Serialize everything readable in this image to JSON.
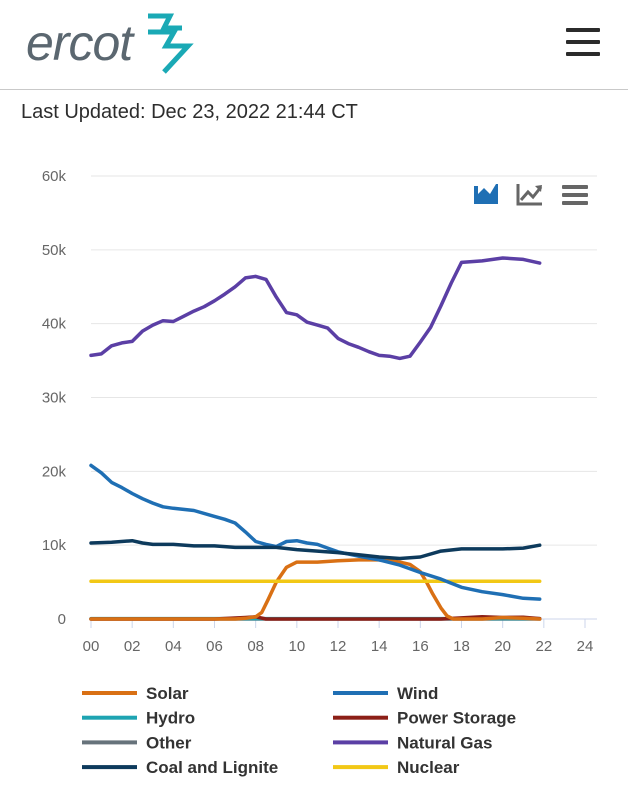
{
  "header": {
    "logo_text": "ercot",
    "brand_color": "#1aa9b5",
    "menu_icon": "hamburger-menu-icon"
  },
  "last_updated": "Last Updated: Dec 23, 2022 21:44 CT",
  "toolbar": {
    "icons": [
      "area-chart-icon",
      "line-chart-icon",
      "menu-icon"
    ]
  },
  "chart_data": {
    "type": "line",
    "title": "",
    "xlabel": "",
    "ylabel": "",
    "xlim": [
      0,
      24
    ],
    "ylim": [
      0,
      60000
    ],
    "grid": true,
    "legend_position": "bottom",
    "x_ticks": [
      "00",
      "02",
      "04",
      "06",
      "08",
      "10",
      "12",
      "14",
      "16",
      "18",
      "20",
      "22",
      "24"
    ],
    "y_ticks": [
      "0",
      "10k",
      "20k",
      "30k",
      "40k",
      "50k",
      "60k"
    ],
    "series": [
      {
        "name": "Solar",
        "color": "#d97014",
        "x": [
          0,
          7,
          7.5,
          8,
          8.3,
          8.6,
          9,
          9.5,
          10,
          11,
          12,
          13,
          14,
          14.5,
          15,
          15.5,
          16,
          16.3,
          16.6,
          17,
          17.3,
          17.6,
          18,
          19,
          20,
          21,
          21.8
        ],
        "y": [
          0,
          0,
          100,
          300,
          900,
          2600,
          5000,
          7000,
          7700,
          7700,
          7900,
          8000,
          8000,
          7900,
          7700,
          7400,
          6400,
          5000,
          3400,
          1500,
          400,
          0,
          0,
          0,
          200,
          100,
          0
        ]
      },
      {
        "name": "Wind",
        "color": "#1f6fb4",
        "x": [
          0,
          0.5,
          1,
          1.5,
          2,
          2.5,
          3,
          3.5,
          4,
          5,
          6,
          6.5,
          7,
          7.5,
          8,
          8.5,
          9,
          9.5,
          10,
          10.5,
          11,
          11.5,
          12,
          13,
          14,
          15,
          16,
          17,
          18,
          19,
          20,
          21,
          21.8
        ],
        "y": [
          20800,
          19800,
          18500,
          17800,
          17000,
          16300,
          15700,
          15200,
          15000,
          14700,
          13900,
          13500,
          13000,
          11800,
          10500,
          10100,
          9800,
          10500,
          10600,
          10300,
          10100,
          9600,
          9100,
          8500,
          8000,
          7300,
          6300,
          5400,
          4300,
          3700,
          3300,
          2800,
          2700
        ]
      },
      {
        "name": "Hydro",
        "color": "#1ea4b2",
        "x": [
          0,
          4,
          8,
          12,
          16,
          20,
          21.8
        ],
        "y": [
          60,
          60,
          60,
          60,
          60,
          60,
          60
        ]
      },
      {
        "name": "Power Storage",
        "color": "#8c1f17",
        "x": [
          0,
          6,
          7.5,
          8,
          8.5,
          9,
          12,
          16,
          17,
          18,
          19,
          20,
          21,
          21.8
        ],
        "y": [
          0,
          0,
          200,
          300,
          0,
          0,
          0,
          0,
          0,
          150,
          300,
          200,
          250,
          50
        ]
      },
      {
        "name": "Other",
        "color": "#67737b",
        "x": [
          0,
          4,
          8,
          12,
          16,
          20,
          21.8
        ],
        "y": [
          0,
          0,
          0,
          0,
          0,
          0,
          0
        ]
      },
      {
        "name": "Natural Gas",
        "color": "#5b3fa5",
        "x": [
          0,
          0.5,
          1,
          1.5,
          2,
          2.5,
          3,
          3.5,
          4,
          4.5,
          5,
          5.5,
          6,
          6.5,
          7,
          7.5,
          8,
          8.5,
          9,
          9.5,
          10,
          10.5,
          11,
          11.5,
          12,
          12.5,
          13,
          13.5,
          14,
          14.5,
          15,
          15.5,
          16,
          16.5,
          17,
          17.5,
          18,
          19,
          20,
          21,
          21.8
        ],
        "y": [
          35700,
          35900,
          37000,
          37400,
          37600,
          39000,
          39800,
          40400,
          40300,
          41000,
          41700,
          42300,
          43100,
          44000,
          45000,
          46200,
          46400,
          46000,
          43600,
          41500,
          41200,
          40200,
          39800,
          39400,
          38000,
          37300,
          36800,
          36200,
          35700,
          35600,
          35300,
          35600,
          37500,
          39500,
          42400,
          45500,
          48300,
          48500,
          48900,
          48700,
          48200
        ]
      },
      {
        "name": "Coal and Lignite",
        "color": "#0d3a5c",
        "x": [
          0,
          1,
          2,
          2.5,
          3,
          4,
          5,
          6,
          7,
          8,
          9,
          10,
          11,
          12,
          13,
          14,
          15,
          16,
          17,
          18,
          19,
          20,
          21,
          21.8
        ],
        "y": [
          10300,
          10400,
          10600,
          10300,
          10100,
          10100,
          9900,
          9900,
          9700,
          9700,
          9700,
          9400,
          9200,
          9000,
          8700,
          8400,
          8200,
          8400,
          9200,
          9500,
          9500,
          9500,
          9600,
          10000
        ]
      },
      {
        "name": "Nuclear",
        "color": "#f2c816",
        "x": [
          0,
          21.8
        ],
        "y": [
          5100,
          5100
        ]
      }
    ]
  }
}
